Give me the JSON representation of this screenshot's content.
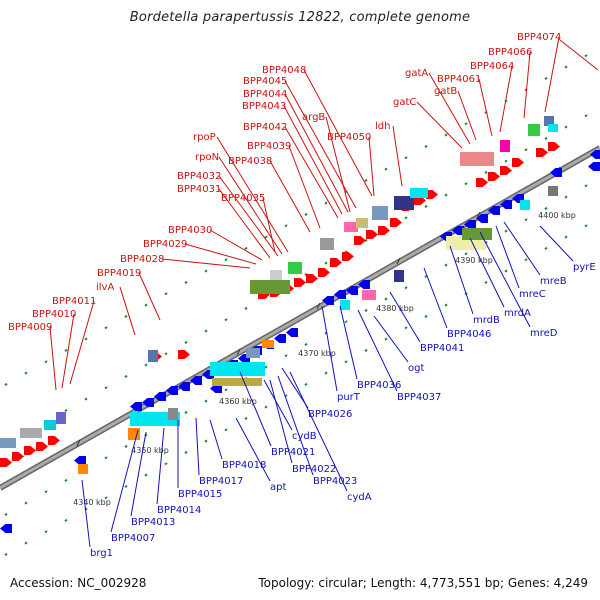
{
  "title": "Bordetella parapertussis 12822, complete genome",
  "footer": {
    "accession": "Accession: NC_002928",
    "summary": "Topology: circular; Length: 4,773,551 bp; Genes: 4,249"
  },
  "colors": {
    "forward_label": "#cc1111",
    "reverse_label": "#1111bb",
    "forward_gene": "#ff0000",
    "reverse_gene": "#0000ee",
    "backbone": "#888888",
    "tick": "#228833"
  },
  "ticks": [
    "4340 kbp",
    "4350 kbp",
    "4360 kbp",
    "4370 kbp",
    "4380 kbp",
    "4390 kbp",
    "4400 kbp"
  ],
  "forward_labels": [
    "BPP4009",
    "BPP4010",
    "BPP4011",
    "ilvA",
    "BPP4019",
    "BPP4028",
    "BPP4029",
    "BPP4030",
    "BPP4035",
    "BPP4031",
    "BPP4032",
    "rpoN",
    "rpoP",
    "BPP4038",
    "BPP4039",
    "BPP4042",
    "BPP4043",
    "BPP4044",
    "BPP4045",
    "BPP4048",
    "argB",
    "BPP4050",
    "ldh",
    "gatC",
    "gatA",
    "gatB",
    "BPP4061",
    "BPP4064",
    "BPP4066",
    "BPP4074"
  ],
  "reverse_labels": [
    "brg1",
    "BPP4007",
    "BPP4013",
    "BPP4014",
    "BPP4015",
    "BPP4017",
    "BPP4018",
    "apt",
    "BPP4021",
    "cydB",
    "BPP4022",
    "BPP4023",
    "cydA",
    "BPP4026",
    "purT",
    "BPP4036",
    "BPP4037",
    "ogt",
    "BPP4041",
    "BPP4046",
    "mrdB",
    "mrdA",
    "mreD",
    "mreC",
    "mreB",
    "pyrE"
  ]
}
